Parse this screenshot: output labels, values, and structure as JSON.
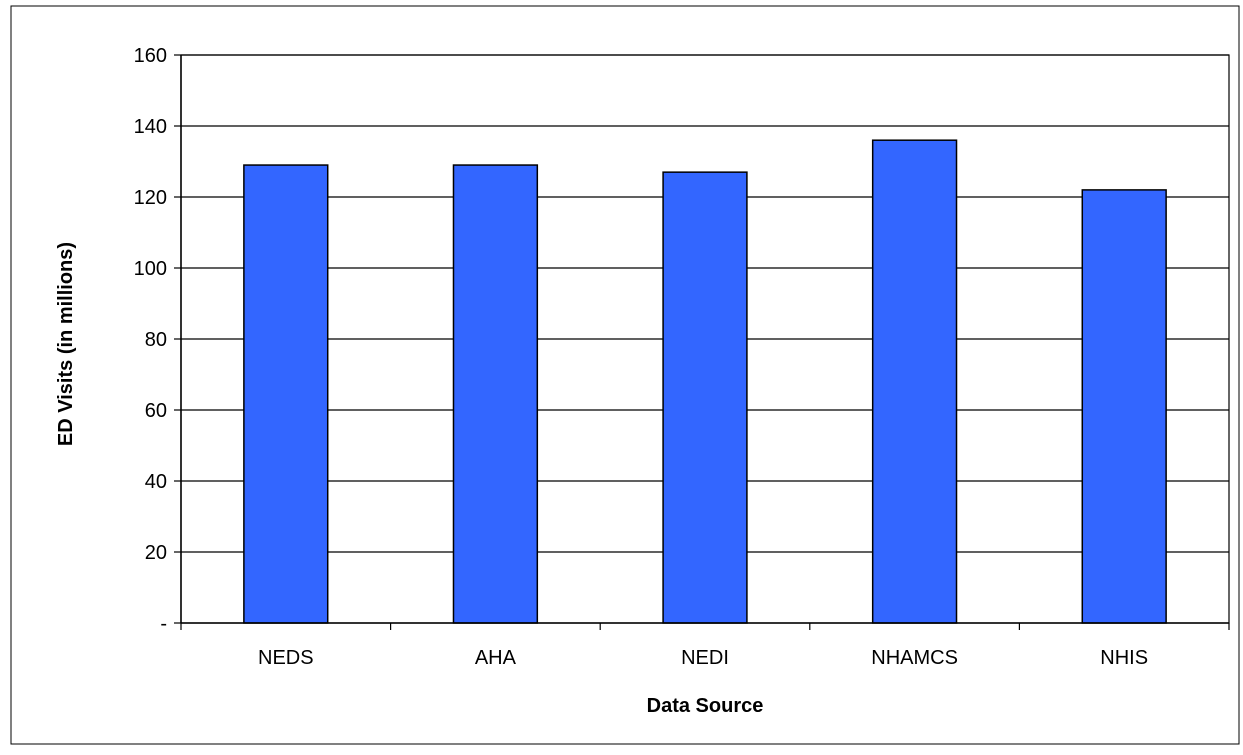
{
  "chart_data": {
    "type": "bar",
    "title": "",
    "xlabel": "Data Source",
    "ylabel": "ED Visits (in millions)",
    "categories": [
      "NEDS",
      "AHA",
      "NEDI",
      "NHAMCS",
      "NHIS"
    ],
    "series": [
      {
        "values": [
          129,
          129,
          127,
          136,
          122
        ]
      }
    ],
    "ylim": [
      0,
      160
    ],
    "yticks": [
      0,
      20,
      40,
      60,
      80,
      100,
      120,
      140,
      160
    ],
    "ytick_labels": [
      "-",
      "20",
      "40",
      "60",
      "80",
      "100",
      "120",
      "140",
      "160"
    ],
    "grid": true,
    "legend": "none",
    "bar_color": "#3366ff"
  }
}
